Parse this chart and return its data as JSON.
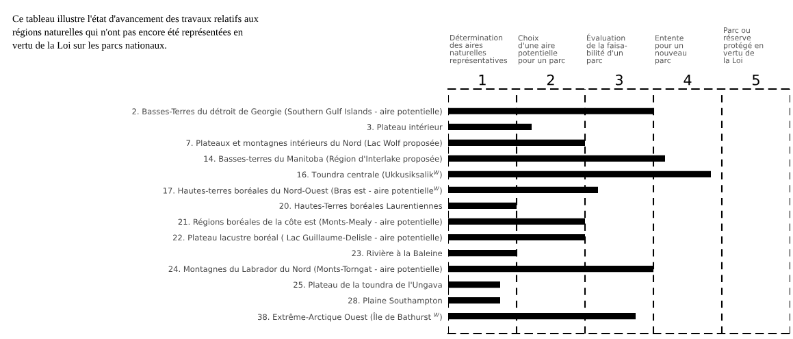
{
  "chart_data": {
    "type": "bar",
    "orientation": "horizontal",
    "title": "Ce tableau illustre l'état d'avancement des travaux relatifs aux\nrégions naturelles qui n'ont pas encore été représentées en\nvertu de la Loi sur les parcs nationaux.",
    "categories": [
      "2. Basses-Terres du détroit de Georgie (Southern Gulf Islands - aire potentielle)",
      "3. Plateau intérieur",
      "7. Plateaux et montagnes intérieurs du Nord (Lac Wolf proposée)",
      "14. Basses-terres du Manitoba (Région d'Interlake proposée)",
      "16. Toundra centrale (Ukkusiksalik$^{W}$)",
      "17. Hautes-terres boréales du Nord-Ouest (Bras est - aire potentielle$^{W}$)",
      "20. Hautes-Terres boréales Laurentiennes",
      "21. Régions boréales de la côte est (Monts-Mealy - aire potentielle)",
      "22. Plateau lacustre boréal ( Lac Guillaume-Delisle - aire potentielle)",
      "23. Rivière à la Baleine",
      "24. Montagnes du Labrador du Nord (Monts-Torngat - aire potentielle)",
      "25. Plateau de la toundra de l'Ungava",
      "28. Plaine Southampton",
      "38. Extrême-Arctique Ouest (Île de Bathurst $^{W}$)"
    ],
    "values": [
      3.5,
      1.72,
      2.5,
      3.67,
      4.34,
      2.69,
      1.5,
      2.5,
      2.5,
      1.5,
      3.5,
      1.26,
      1.26,
      3.24
    ],
    "color": "#000000",
    "xlim": [
      0.5,
      5.5
    ],
    "xticks": [
      1,
      2,
      3,
      4,
      5
    ],
    "ref_lines": [
      {
        "axis": "x",
        "value": 0.5,
        "line_style": "dashed",
        "color": "#000000"
      },
      {
        "axis": "x",
        "value": 1.5,
        "line_style": "dashed",
        "color": "#000000"
      },
      {
        "axis": "x",
        "value": 2.5,
        "line_style": "dashed",
        "color": "#000000"
      },
      {
        "axis": "x",
        "value": 3.5,
        "line_style": "dashed",
        "color": "#000000"
      },
      {
        "axis": "x",
        "value": 4.5,
        "line_style": "dashed",
        "color": "#000000"
      },
      {
        "axis": "x",
        "value": 5.5,
        "line_style": "dashed",
        "color": "#000000"
      }
    ],
    "annotations": [
      "Détermination\ndes aires\nnaturelles\nreprésentatives",
      "Choix\nd'une aire\npotentielle\npour un parc",
      "Évaluation\nde la faisa-\nbilité d'un\nparc",
      "Entente\npour un\nnouveau\nparc",
      "Parc ou\nréserve\nprotégé en\nvertu de\nla Loi"
    ],
    "legend": false,
    "grid": false
  }
}
